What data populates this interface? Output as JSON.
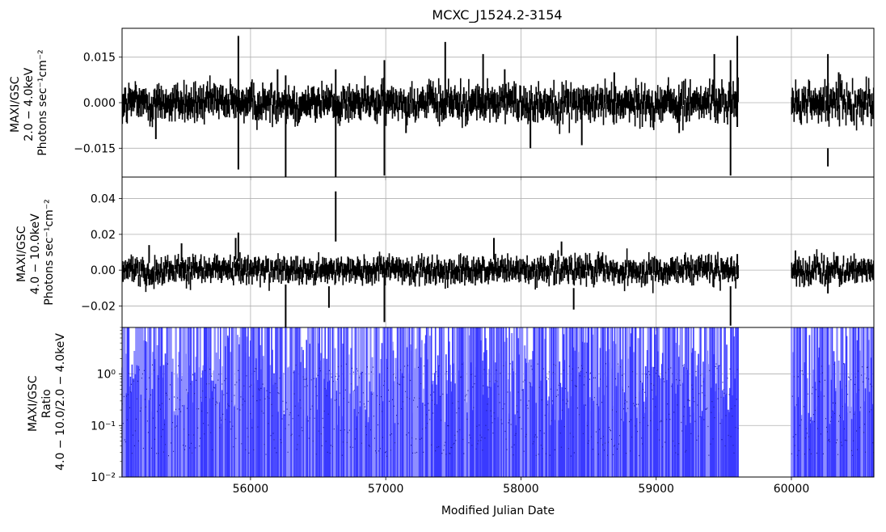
{
  "chart_data": [
    {
      "type": "errorbar",
      "title": "MCXC_J1524.2-3154",
      "ylabel": [
        "MAXI/GSC",
        "2.0 − 4.0keV",
        "Photons sec⁻¹cm⁻²"
      ],
      "xlim": [
        55050,
        60610
      ],
      "ylim": [
        -0.0245,
        0.0245
      ],
      "yticks": [
        -0.015,
        0.0,
        0.015
      ],
      "ytick_labels": [
        "−0.015",
        "0.000",
        "0.015"
      ],
      "grid": true,
      "line_color": "#000000",
      "typical_error": 0.004,
      "data_gap": [
        59610,
        60000
      ],
      "points": [
        [
          55910,
          0.0,
          0.022
        ],
        [
          56260,
          -0.008,
          0.017
        ],
        [
          56630,
          -0.007,
          0.018
        ],
        [
          56990,
          -0.005,
          0.019
        ],
        [
          57440,
          0.008,
          0.012
        ],
        [
          57720,
          0.007,
          0.009
        ],
        [
          58070,
          -0.007,
          0.008
        ],
        [
          58450,
          -0.007,
          0.007
        ],
        [
          59430,
          0.008,
          0.008
        ],
        [
          59550,
          -0.005,
          0.019
        ],
        [
          59600,
          0.007,
          0.015
        ],
        [
          60270,
          0.005,
          0.011
        ],
        [
          60270,
          -0.018,
          0.003
        ],
        [
          55300,
          -0.006,
          0.006
        ],
        [
          56200,
          0.005,
          0.006
        ],
        [
          57150,
          -0.004,
          0.006
        ],
        [
          57880,
          0.005,
          0.006
        ],
        [
          58690,
          0.004,
          0.006
        ],
        [
          59170,
          -0.004,
          0.006
        ],
        [
          60350,
          0.004,
          0.006
        ]
      ]
    },
    {
      "type": "errorbar",
      "ylabel": [
        "MAXI/GSC",
        "4.0 − 10.0keV",
        "Photons sec⁻¹cm⁻²"
      ],
      "xlim": [
        55050,
        60610
      ],
      "ylim": [
        -0.032,
        0.052
      ],
      "yticks": [
        -0.02,
        0.0,
        0.02,
        0.04
      ],
      "ytick_labels": [
        "−0.02",
        "0.00",
        "0.02",
        "0.04"
      ],
      "grid": true,
      "line_color": "#000000",
      "typical_error": 0.005,
      "data_gap": [
        59610,
        60000
      ],
      "points": [
        [
          55250,
          0.009,
          0.005
        ],
        [
          55490,
          0.01,
          0.005
        ],
        [
          55890,
          0.012,
          0.006
        ],
        [
          55910,
          0.013,
          0.008
        ],
        [
          56260,
          -0.02,
          0.012
        ],
        [
          56580,
          -0.015,
          0.006
        ],
        [
          56630,
          0.03,
          0.014
        ],
        [
          56990,
          -0.016,
          0.013
        ],
        [
          57800,
          0.012,
          0.006
        ],
        [
          58300,
          0.012,
          0.004
        ],
        [
          58390,
          -0.016,
          0.006
        ],
        [
          59550,
          -0.02,
          0.011
        ],
        [
          59600,
          0.002,
          0.007
        ],
        [
          60030,
          0.007,
          0.004
        ],
        [
          60270,
          -0.004,
          0.009
        ]
      ]
    },
    {
      "type": "errorbar",
      "ylabel": [
        "MAXI/GSC",
        "Ratio",
        "4.0 − 10.0/2.0 − 4.0keV"
      ],
      "xlabel": "Modified Julian Date",
      "yscale": "log",
      "ylim": [
        0.01,
        8
      ],
      "yticks": [
        0.01,
        0.1,
        1
      ],
      "ytick_labels": [
        "10⁻²",
        "10⁻¹",
        "10⁰"
      ],
      "xticks": [
        56000,
        57000,
        58000,
        59000,
        60000
      ],
      "xtick_labels": [
        "56000",
        "57000",
        "58000",
        "59000",
        "60000"
      ],
      "xlim": [
        55050,
        60610
      ],
      "grid": true,
      "line_color": "#0000ff",
      "data_gap": [
        59610,
        60000
      ]
    }
  ]
}
